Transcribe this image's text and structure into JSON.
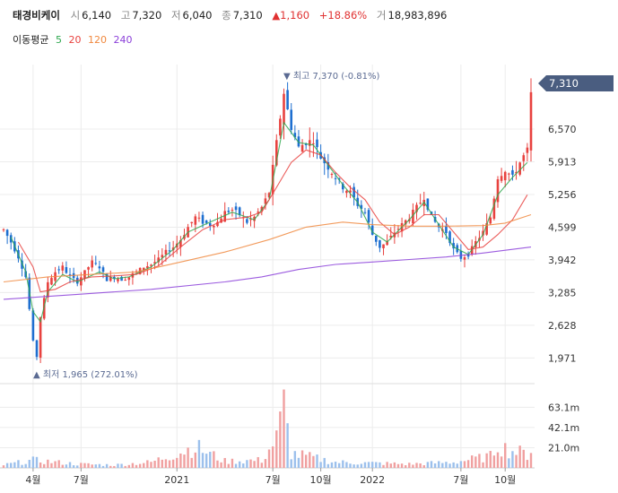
{
  "header": {
    "name": "태경비케이",
    "open_label": "시",
    "open": "6,140",
    "high_label": "고",
    "high": "7,320",
    "low_label": "저",
    "low": "6,040",
    "close_label": "종",
    "close": "7,310",
    "change": "▲1,160",
    "change_pct": "+18.86%",
    "volume_label": "거",
    "volume": "18,983,896"
  },
  "ma_legend": {
    "label": "이동평균",
    "items": [
      {
        "text": "5",
        "color": "#2fa84f"
      },
      {
        "text": "20",
        "color": "#e8423f"
      },
      {
        "text": "120",
        "color": "#f0883e"
      },
      {
        "text": "240",
        "color": "#8b3fd9"
      }
    ]
  },
  "annotations": {
    "high": "▼ 최고 7,370 (-0.81%)",
    "low": "▲ 최저 1,965 (272.01%)",
    "current_price": "7,310"
  },
  "colors": {
    "up": "#e8423f",
    "down": "#1e6fd0",
    "price_tag": "#4a5d80",
    "grid": "#ececec"
  },
  "chart_data": {
    "type": "candlestick",
    "price_axis": {
      "ticks": [
        1971,
        2628,
        3285,
        3942,
        4599,
        5256,
        5913,
        6570
      ],
      "tick_labels": [
        "1,971",
        "2,628",
        "3,285",
        "3,942",
        "4,599",
        "5,256",
        "5,913",
        "6,570"
      ],
      "range": [
        1600,
        7650
      ]
    },
    "volume_axis": {
      "ticks": [
        21.0,
        42.1,
        63.1
      ],
      "tick_labels": [
        "21.0m",
        "42.1m",
        "63.1m"
      ],
      "range": [
        0,
        84
      ]
    },
    "x_axis": {
      "labels": [
        "4월",
        "7월",
        "2021",
        "7월",
        "10월",
        "2022",
        "7월",
        "10월"
      ],
      "label_positions": [
        8,
        21,
        47,
        73,
        86,
        100,
        124,
        136
      ]
    },
    "price_path": [
      [
        0,
        4550
      ],
      [
        2,
        4300
      ],
      [
        4,
        4000
      ],
      [
        6,
        3600
      ],
      [
        8,
        2300
      ],
      [
        9,
        2000
      ],
      [
        10,
        2800
      ],
      [
        12,
        3500
      ],
      [
        14,
        3700
      ],
      [
        16,
        3800
      ],
      [
        18,
        3600
      ],
      [
        20,
        3500
      ],
      [
        22,
        3700
      ],
      [
        24,
        3900
      ],
      [
        26,
        3800
      ],
      [
        28,
        3550
      ],
      [
        30,
        3600
      ],
      [
        32,
        3550
      ],
      [
        34,
        3600
      ],
      [
        36,
        3700
      ],
      [
        38,
        3800
      ],
      [
        40,
        3850
      ],
      [
        42,
        3950
      ],
      [
        44,
        4100
      ],
      [
        46,
        4200
      ],
      [
        48,
        4350
      ],
      [
        50,
        4600
      ],
      [
        52,
        4800
      ],
      [
        54,
        4700
      ],
      [
        56,
        4650
      ],
      [
        58,
        4700
      ],
      [
        60,
        4900
      ],
      [
        62,
        4950
      ],
      [
        64,
        4850
      ],
      [
        66,
        4700
      ],
      [
        68,
        4800
      ],
      [
        70,
        5000
      ],
      [
        72,
        5300
      ],
      [
        74,
        6300
      ],
      [
        76,
        7300
      ],
      [
        78,
        6600
      ],
      [
        80,
        6200
      ],
      [
        82,
        6300
      ],
      [
        84,
        6350
      ],
      [
        86,
        6000
      ],
      [
        88,
        5800
      ],
      [
        90,
        5600
      ],
      [
        92,
        5400
      ],
      [
        94,
        5300
      ],
      [
        96,
        5050
      ],
      [
        98,
        4900
      ],
      [
        100,
        4450
      ],
      [
        102,
        4200
      ],
      [
        104,
        4300
      ],
      [
        106,
        4500
      ],
      [
        108,
        4650
      ],
      [
        110,
        4800
      ],
      [
        112,
        5000
      ],
      [
        114,
        5200
      ],
      [
        116,
        4800
      ],
      [
        118,
        4600
      ],
      [
        120,
        4500
      ],
      [
        122,
        4150
      ],
      [
        124,
        3980
      ],
      [
        126,
        4050
      ],
      [
        128,
        4300
      ],
      [
        130,
        4500
      ],
      [
        132,
        4800
      ],
      [
        134,
        5600
      ],
      [
        136,
        5750
      ],
      [
        138,
        5600
      ],
      [
        140,
        5900
      ],
      [
        142,
        6150
      ],
      [
        143,
        7310
      ]
    ],
    "moving_averages": [
      {
        "name": "5",
        "color": "#2fa84f",
        "path": [
          [
            2,
            4400
          ],
          [
            6,
            3700
          ],
          [
            8,
            2900
          ],
          [
            10,
            2700
          ],
          [
            12,
            3300
          ],
          [
            16,
            3650
          ],
          [
            20,
            3500
          ],
          [
            26,
            3700
          ],
          [
            30,
            3560
          ],
          [
            34,
            3600
          ],
          [
            40,
            3800
          ],
          [
            46,
            4150
          ],
          [
            50,
            4500
          ],
          [
            56,
            4700
          ],
          [
            62,
            4900
          ],
          [
            68,
            4750
          ],
          [
            72,
            5150
          ],
          [
            76,
            6700
          ],
          [
            80,
            6300
          ],
          [
            84,
            6250
          ],
          [
            88,
            5850
          ],
          [
            92,
            5450
          ],
          [
            96,
            5100
          ],
          [
            100,
            4500
          ],
          [
            104,
            4300
          ],
          [
            110,
            4750
          ],
          [
            114,
            5100
          ],
          [
            118,
            4650
          ],
          [
            122,
            4200
          ],
          [
            126,
            4050
          ],
          [
            130,
            4450
          ],
          [
            134,
            5250
          ],
          [
            138,
            5600
          ],
          [
            142,
            5900
          ]
        ]
      },
      {
        "name": "20",
        "color": "#e8423f",
        "path": [
          [
            4,
            4300
          ],
          [
            8,
            3800
          ],
          [
            10,
            3300
          ],
          [
            14,
            3350
          ],
          [
            18,
            3500
          ],
          [
            24,
            3600
          ],
          [
            30,
            3620
          ],
          [
            36,
            3650
          ],
          [
            42,
            3820
          ],
          [
            48,
            4200
          ],
          [
            54,
            4550
          ],
          [
            60,
            4750
          ],
          [
            66,
            4800
          ],
          [
            70,
            4900
          ],
          [
            74,
            5400
          ],
          [
            78,
            5900
          ],
          [
            82,
            6150
          ],
          [
            86,
            6050
          ],
          [
            90,
            5700
          ],
          [
            94,
            5400
          ],
          [
            98,
            5150
          ],
          [
            102,
            4700
          ],
          [
            106,
            4450
          ],
          [
            110,
            4600
          ],
          [
            114,
            4850
          ],
          [
            118,
            4850
          ],
          [
            122,
            4500
          ],
          [
            126,
            4150
          ],
          [
            130,
            4200
          ],
          [
            134,
            4450
          ],
          [
            138,
            4750
          ],
          [
            142,
            5250
          ]
        ]
      },
      {
        "name": "120",
        "color": "#f0883e",
        "path": [
          [
            0,
            3500
          ],
          [
            12,
            3600
          ],
          [
            24,
            3650
          ],
          [
            36,
            3700
          ],
          [
            48,
            3900
          ],
          [
            60,
            4100
          ],
          [
            72,
            4350
          ],
          [
            82,
            4600
          ],
          [
            92,
            4700
          ],
          [
            100,
            4650
          ],
          [
            110,
            4620
          ],
          [
            120,
            4620
          ],
          [
            130,
            4630
          ],
          [
            136,
            4680
          ],
          [
            143,
            4850
          ]
        ]
      },
      {
        "name": "240",
        "color": "#8b3fd9",
        "path": [
          [
            0,
            3150
          ],
          [
            20,
            3250
          ],
          [
            40,
            3350
          ],
          [
            60,
            3500
          ],
          [
            70,
            3600
          ],
          [
            80,
            3750
          ],
          [
            90,
            3850
          ],
          [
            100,
            3900
          ],
          [
            110,
            3950
          ],
          [
            120,
            4000
          ],
          [
            130,
            4080
          ],
          [
            143,
            4200
          ]
        ]
      }
    ],
    "volume_path": [
      [
        0,
        3
      ],
      [
        8,
        8
      ],
      [
        20,
        4
      ],
      [
        30,
        3
      ],
      [
        40,
        6
      ],
      [
        52,
        22
      ],
      [
        60,
        7
      ],
      [
        70,
        8
      ],
      [
        74,
        30
      ],
      [
        76,
        63
      ],
      [
        78,
        15
      ],
      [
        90,
        6
      ],
      [
        100,
        5
      ],
      [
        110,
        4
      ],
      [
        122,
        6
      ],
      [
        132,
        12
      ],
      [
        134,
        26
      ],
      [
        136,
        20
      ],
      [
        142,
        14
      ],
      [
        143,
        18.98
      ]
    ]
  }
}
